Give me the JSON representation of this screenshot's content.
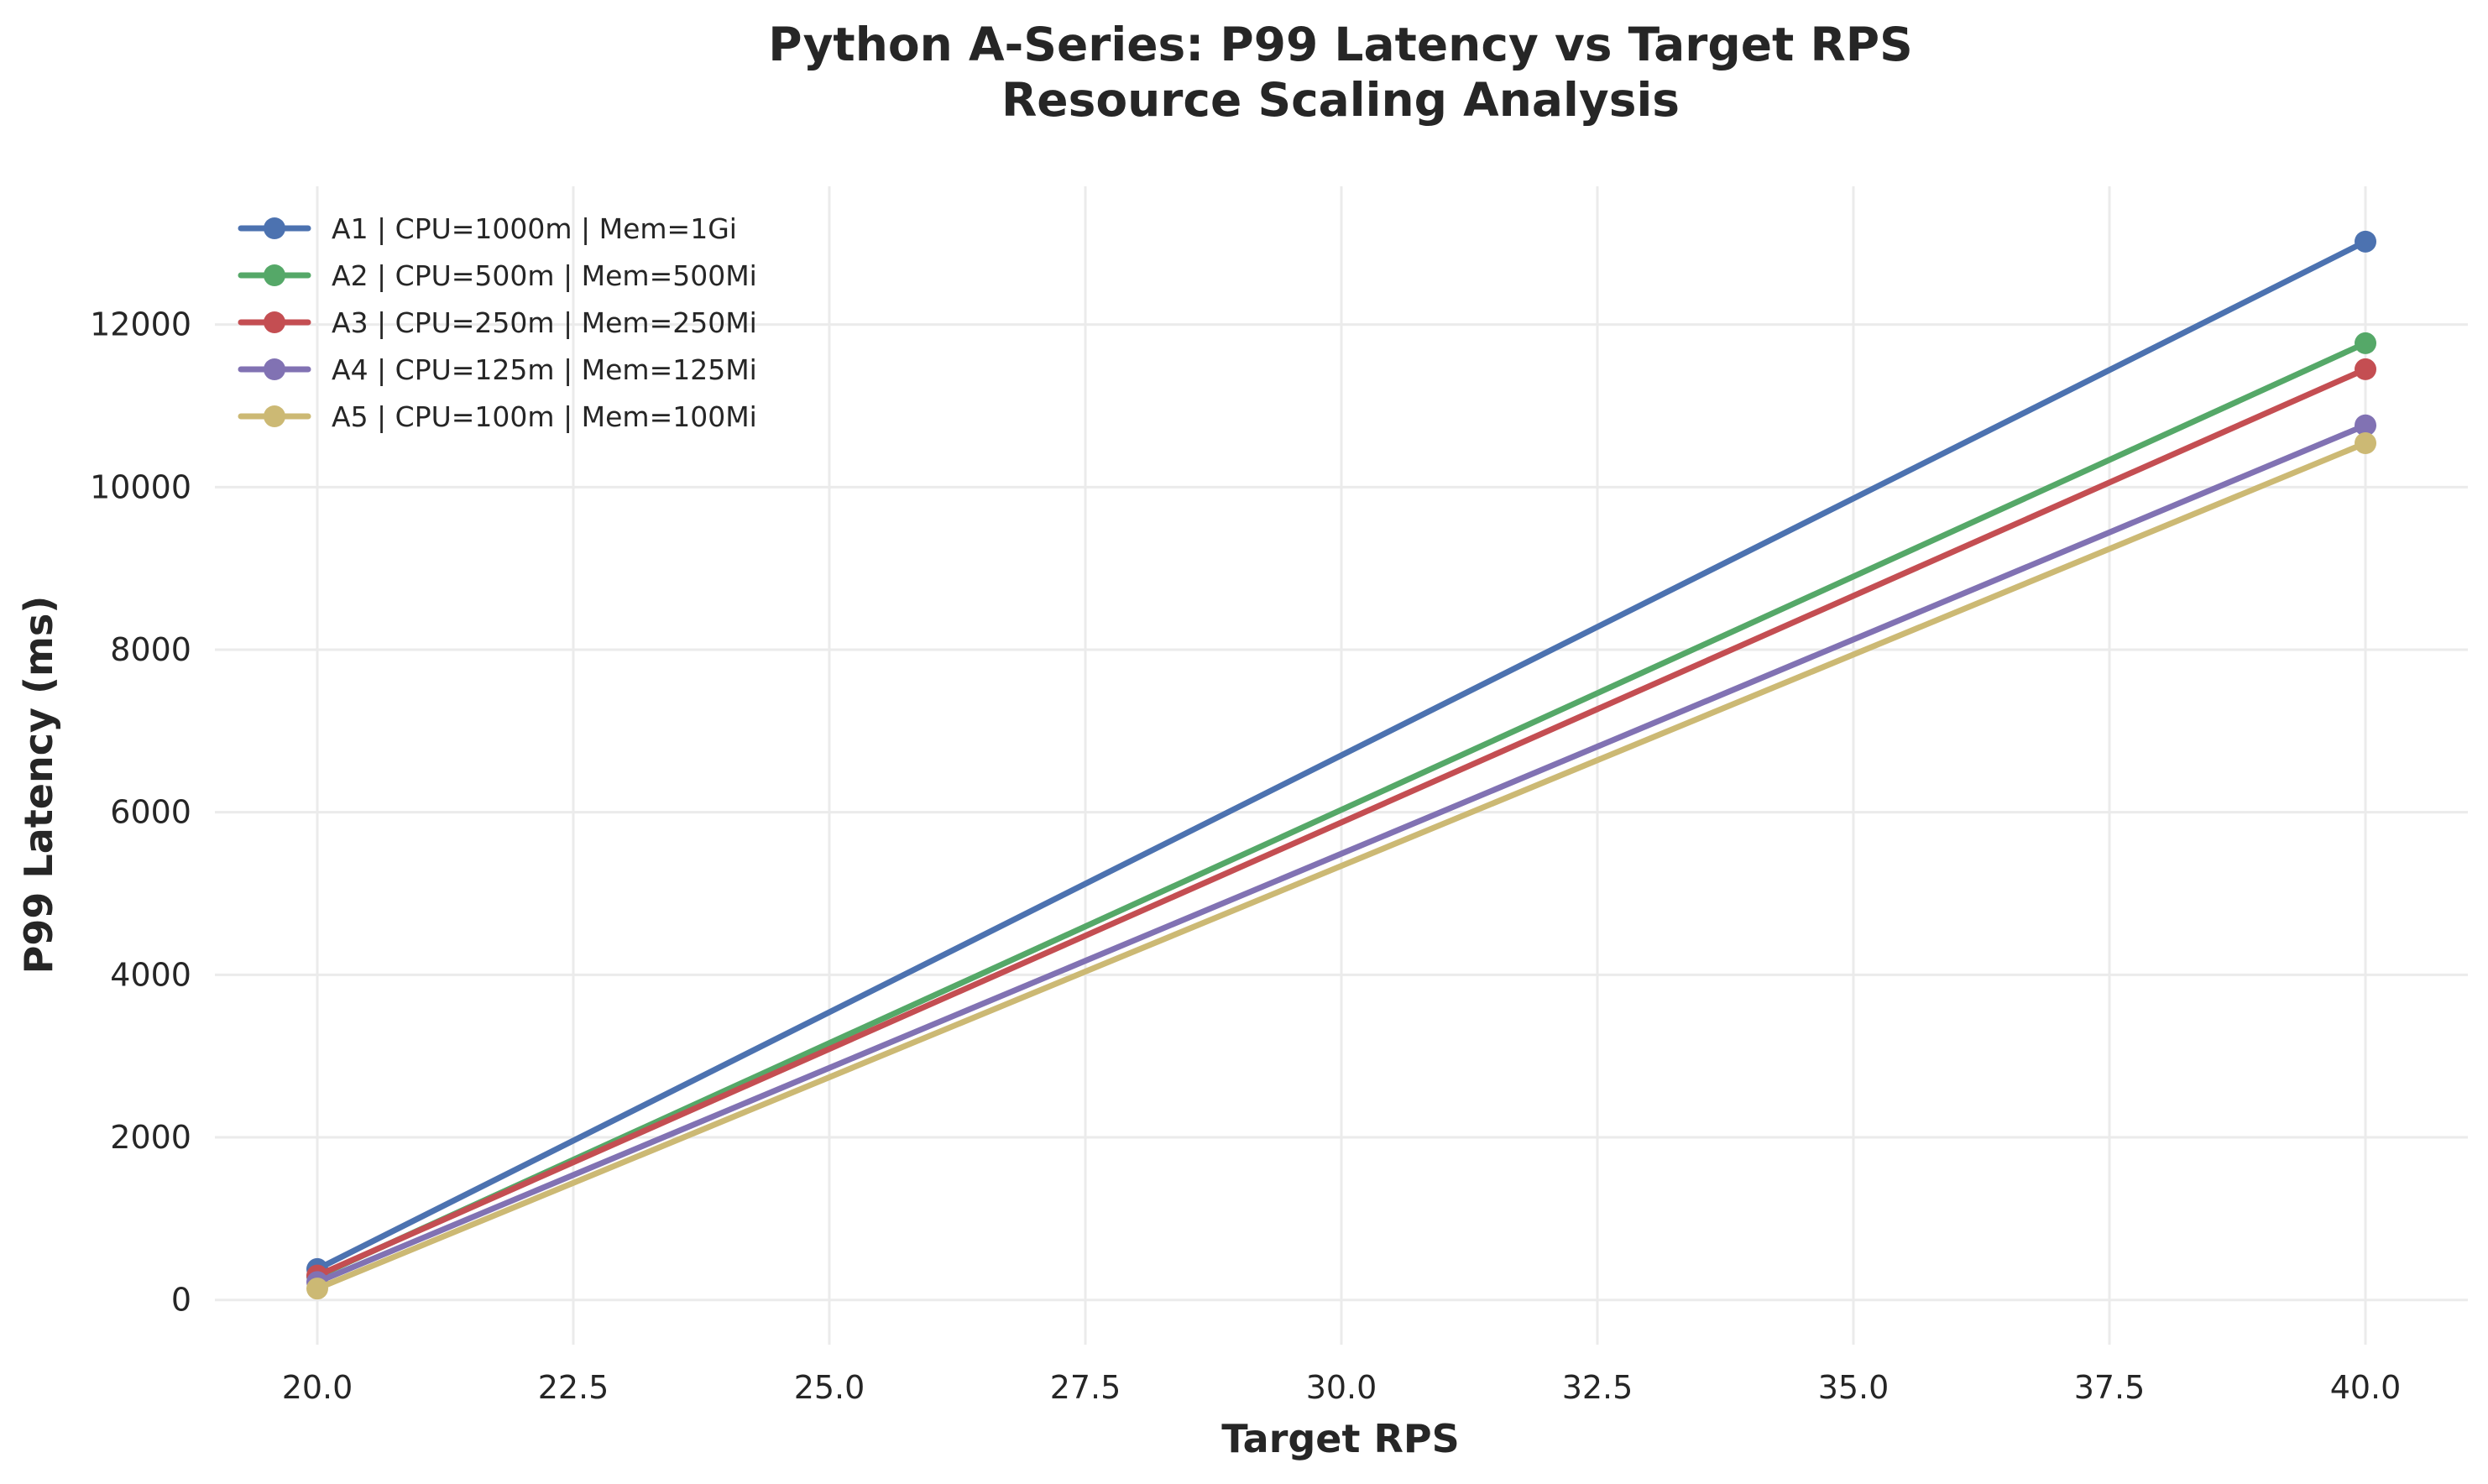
{
  "chart_data": {
    "type": "line",
    "title": "Python A-Series: P99 Latency vs Target RPS",
    "subtitle": "Resource Scaling Analysis",
    "xlabel": "Target RPS",
    "ylabel": "P99 Latency (ms)",
    "xlim": [
      19.0,
      41.0
    ],
    "ylim": [
      -550,
      13700
    ],
    "x_ticks": [
      20.0,
      22.5,
      25.0,
      27.5,
      30.0,
      32.5,
      35.0,
      37.5,
      40.0
    ],
    "x_tick_labels": [
      "20.0",
      "22.5",
      "25.0",
      "27.5",
      "30.0",
      "32.5",
      "35.0",
      "37.5",
      "40.0"
    ],
    "y_ticks": [
      0,
      2000,
      4000,
      6000,
      8000,
      10000,
      12000
    ],
    "y_tick_labels": [
      "0",
      "2000",
      "4000",
      "6000",
      "8000",
      "10000",
      "12000"
    ],
    "grid": true,
    "legend_position": "top-left",
    "x": [
      20,
      40
    ],
    "series": [
      {
        "name": "A1 | CPU=1000m | Mem=1Gi",
        "values": [
          380,
          13020
        ],
        "color": "#4c72b0"
      },
      {
        "name": "A2 | CPU=500m | Mem=500Mi",
        "values": [
          290,
          11770
        ],
        "color": "#55a868"
      },
      {
        "name": "A3 | CPU=250m | Mem=250Mi",
        "values": [
          300,
          11450
        ],
        "color": "#c44e52"
      },
      {
        "name": "A4 | CPU=125m | Mem=125Mi",
        "values": [
          220,
          10760
        ],
        "color": "#8172b3"
      },
      {
        "name": "A5 | CPU=100m | Mem=100Mi",
        "values": [
          140,
          10540
        ],
        "color": "#ccb974"
      }
    ]
  }
}
